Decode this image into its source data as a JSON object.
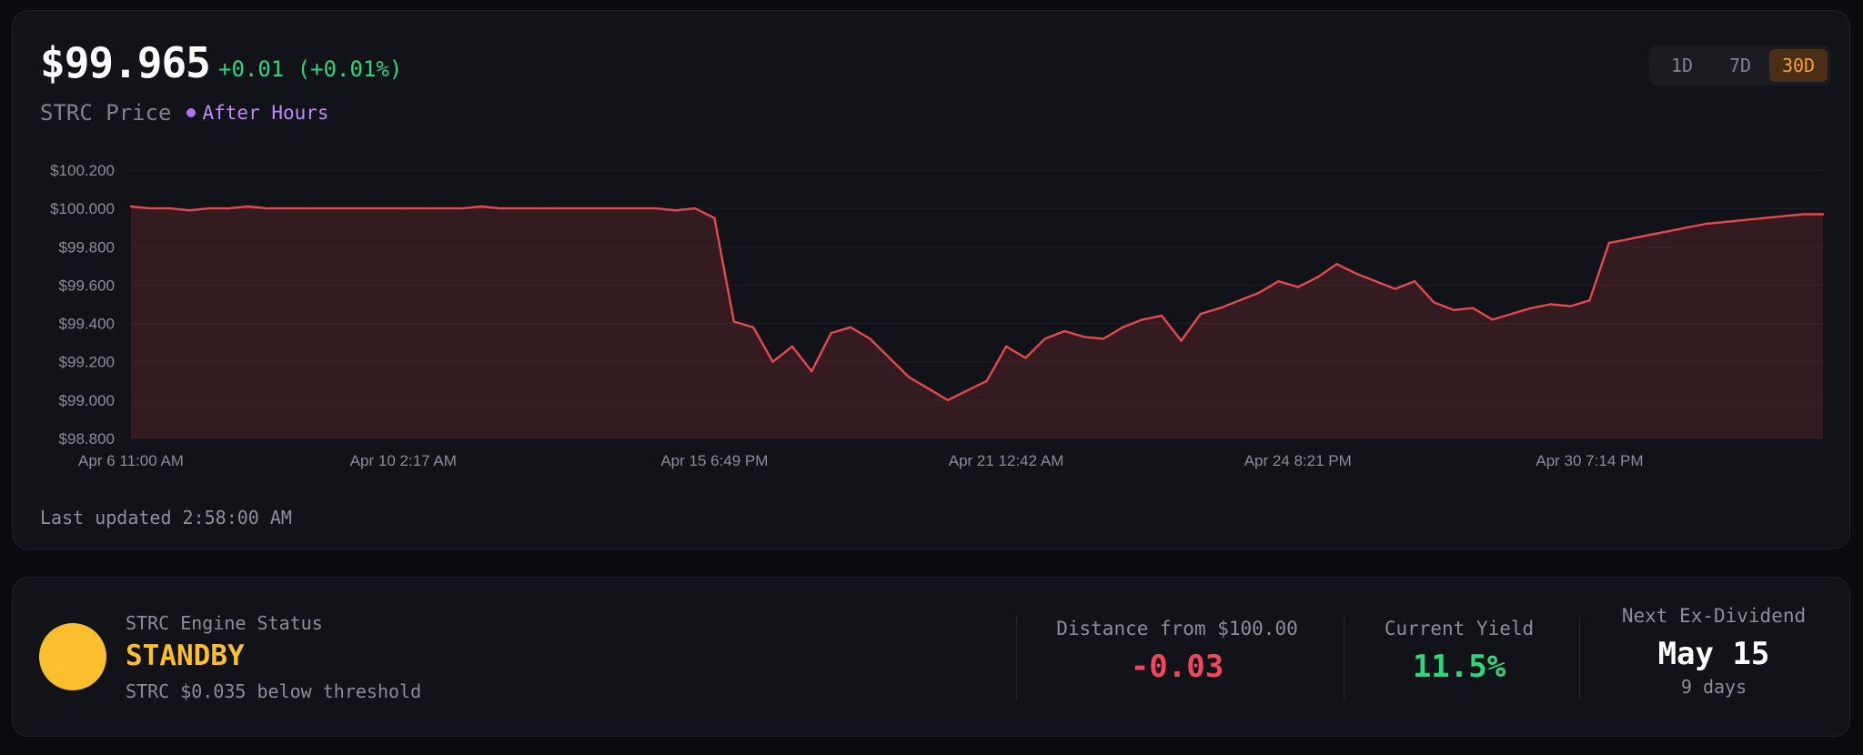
{
  "header": {
    "price": "$99.965",
    "change": "+0.01 (+0.01%)",
    "symbol_label": "STRC Price",
    "session_label": "After Hours"
  },
  "range_selector": {
    "options": [
      "1D",
      "7D",
      "30D"
    ],
    "selected": "30D"
  },
  "footer": {
    "last_updated": "Last updated 2:58:00 AM"
  },
  "colors": {
    "line": "#e5484d",
    "accent_active": "#f2a13a",
    "positive": "#2fd67b",
    "negative": "#f0485a",
    "standby": "#fbbf2e",
    "session": "#c08af8"
  },
  "chart_data": {
    "type": "area",
    "title": "",
    "xlabel": "",
    "ylabel": "",
    "ylim": [
      98.8,
      100.2
    ],
    "y_ticks": [
      "$100.200",
      "$100.000",
      "$99.800",
      "$99.600",
      "$99.400",
      "$99.200",
      "$99.000",
      "$98.800"
    ],
    "x_tick_labels": [
      "Apr 6 11:00 AM",
      "Apr 10 2:17 AM",
      "Apr 15 6:49 PM",
      "Apr 21 12:42 AM",
      "Apr 24 8:21 PM",
      "Apr 30 7:14 PM"
    ],
    "x_tick_index": [
      0,
      14,
      30,
      45,
      60,
      75
    ],
    "grid": true,
    "series": [
      {
        "values": [
          100.01,
          100.0,
          100.0,
          99.99,
          100.0,
          100.0,
          100.01,
          100.0,
          100.0,
          100.0,
          100.0,
          100.0,
          100.0,
          100.0,
          100.0,
          100.0,
          100.0,
          100.0,
          100.01,
          100.0,
          100.0,
          100.0,
          100.0,
          100.0,
          100.0,
          100.0,
          100.0,
          100.0,
          99.99,
          100.0,
          99.95,
          99.41,
          99.38,
          99.2,
          99.28,
          99.15,
          99.35,
          99.38,
          99.32,
          99.22,
          99.12,
          99.06,
          99.0,
          99.05,
          99.1,
          99.28,
          99.22,
          99.32,
          99.36,
          99.33,
          99.32,
          99.38,
          99.42,
          99.44,
          99.31,
          99.45,
          99.48,
          99.52,
          99.56,
          99.62,
          99.59,
          99.64,
          99.71,
          99.66,
          99.62,
          99.58,
          99.62,
          99.51,
          99.47,
          99.48,
          99.42,
          99.45,
          99.48,
          99.5,
          99.49,
          99.52,
          99.82,
          99.84,
          99.86,
          99.88,
          99.9,
          99.92,
          99.93,
          99.94,
          99.95,
          99.96,
          99.97,
          99.97
        ]
      }
    ]
  },
  "engine": {
    "title": "STRC Engine Status",
    "state": "STANDBY",
    "note": "STRC $0.035 below threshold"
  },
  "metrics": {
    "distance": {
      "label": "Distance from $100.00",
      "value": "-0.03"
    },
    "yield": {
      "label": "Current Yield",
      "value": "11.5%"
    },
    "dividend": {
      "label": "Next Ex-Dividend",
      "value": "May 15",
      "sub": "9 days"
    }
  }
}
